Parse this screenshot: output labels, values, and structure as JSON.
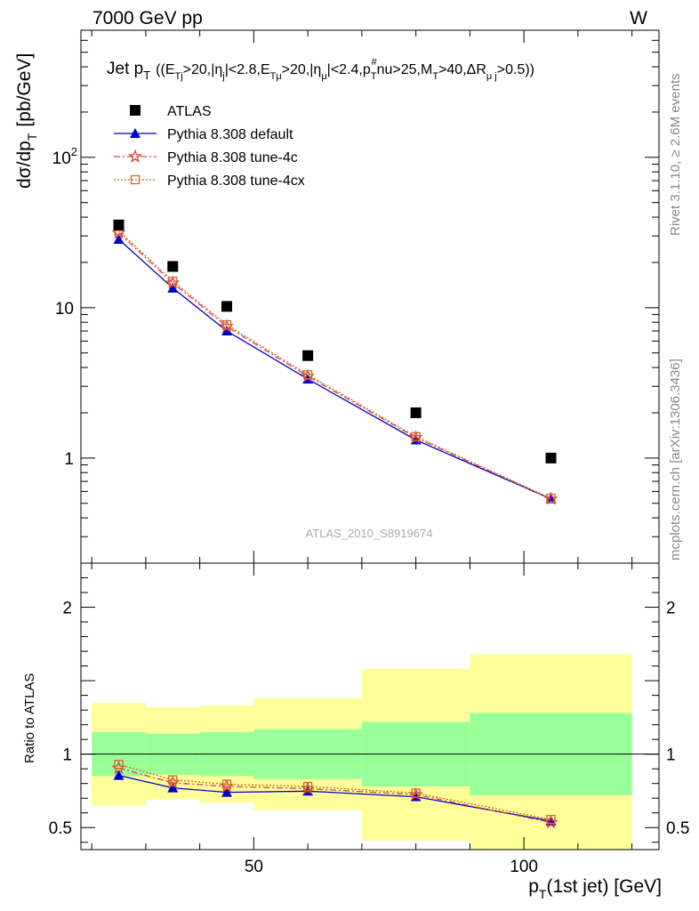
{
  "header": {
    "energy_label": "7000 GeV pp",
    "process_label": "W"
  },
  "side_labels": {
    "rivet": "Rivet 3.1.10, ≥ 2.6M events",
    "mcplots": "mcplots.cern.ch [arXiv:1306.3436]"
  },
  "watermark": "ATLAS_2010_S8919674",
  "colors": {
    "atlas": "#000000",
    "default": "#0000cc",
    "tune4c": "#e04040",
    "tune4cx": "#cc6a2a",
    "band_inner": "#99ff99",
    "band_outer": "#ffff99"
  },
  "chart_data": [
    {
      "type": "scatter",
      "panel": "main",
      "title": "Jet p_T ((E_Tj>20,|η_j|<2.8,E_Tμ>20,|η_μ|<2.4,p_T^#nu>25,M_T>40,ΔR_μj>0.5))",
      "title_parts": {
        "lead": "Jet p",
        "lead_sub": "T",
        "open": "((E",
        "s1": "Tj",
        "t1": ">20,|η",
        "s2": "j",
        "t2": "|<2.8,E",
        "s3": "Tμ",
        "t3": ">20,|η",
        "s4": "μ",
        "t4": "|<2.4,p",
        "s5": "T",
        "sup5": "#",
        "t5": "nu>25,M",
        "s6": "T",
        "t6": ">40,ΔR",
        "s7": "μ j",
        "t7": ">0.5))"
      },
      "ylabel": {
        "main": "dσ/dp",
        "sub": "T",
        "unit": "[pb/GeV]"
      },
      "yscale": "log",
      "ylim": [
        0.2,
        700
      ],
      "xlim": [
        18,
        125
      ],
      "y_tick_labels": [
        {
          "value": 1,
          "label": "1"
        },
        {
          "value": 10,
          "label": "10"
        },
        {
          "value": 100,
          "base": "10",
          "exp": "2"
        }
      ],
      "legend_position": "top-left",
      "series": [
        {
          "name": "ATLAS",
          "key": "atlas",
          "marker": "square",
          "x": [
            25,
            35,
            45,
            60,
            80,
            105
          ],
          "y": [
            35.5,
            18.8,
            10.2,
            4.8,
            2.0,
            1.0
          ]
        },
        {
          "name": "Pythia 8.308 default",
          "key": "default",
          "marker": "triangle",
          "x": [
            25,
            35,
            45,
            60,
            80,
            105
          ],
          "y": [
            28.5,
            13.5,
            7.0,
            3.35,
            1.32,
            0.535
          ]
        },
        {
          "name": "Pythia 8.308 tune-4c",
          "key": "tune4c",
          "marker": "star",
          "x": [
            25,
            35,
            45,
            60,
            80,
            105
          ],
          "y": [
            31.5,
            14.6,
            7.5,
            3.5,
            1.37,
            0.535
          ]
        },
        {
          "name": "Pythia 8.308 tune-4cx",
          "key": "tune4cx",
          "marker": "open-square",
          "x": [
            25,
            35,
            45,
            60,
            80,
            105
          ],
          "y": [
            32.5,
            15.0,
            7.7,
            3.58,
            1.39,
            0.54
          ]
        }
      ]
    },
    {
      "type": "line",
      "panel": "ratio",
      "ylabel": "Ratio to ATLAS",
      "xlabel": {
        "main": "p",
        "sub": "T",
        "rest": "(1st jet) [GeV]"
      },
      "xlim": [
        18,
        125
      ],
      "ylim": [
        0.35,
        2.3
      ],
      "x_tick_labels": [
        {
          "value": 50,
          "label": "50"
        },
        {
          "value": 100,
          "label": "100"
        }
      ],
      "y_tick_labels": [
        {
          "value": 0.5,
          "label": "0.5"
        },
        {
          "value": 1,
          "label": "1"
        },
        {
          "value": 2,
          "label": "2"
        }
      ],
      "bands": [
        {
          "x": [
            20,
            30
          ],
          "inner": [
            0.85,
            1.15
          ],
          "outer": [
            0.65,
            1.35
          ]
        },
        {
          "x": [
            30,
            40
          ],
          "inner": [
            0.86,
            1.14
          ],
          "outer": [
            0.69,
            1.32
          ]
        },
        {
          "x": [
            40,
            50
          ],
          "inner": [
            0.85,
            1.15
          ],
          "outer": [
            0.67,
            1.33
          ]
        },
        {
          "x": [
            50,
            70
          ],
          "inner": [
            0.83,
            1.17
          ],
          "outer": [
            0.62,
            1.38
          ]
        },
        {
          "x": [
            70,
            90
          ],
          "inner": [
            0.78,
            1.22
          ],
          "outer": [
            0.41,
            1.58
          ]
        },
        {
          "x": [
            90,
            120
          ],
          "inner": [
            0.72,
            1.28
          ],
          "outer": [
            0.35,
            1.68
          ]
        }
      ],
      "series": [
        {
          "name": "Pythia 8.308 default",
          "key": "default",
          "marker": "triangle",
          "x": [
            25,
            35,
            45,
            60,
            80,
            105
          ],
          "y": [
            0.855,
            0.77,
            0.74,
            0.748,
            0.71,
            0.545
          ]
        },
        {
          "name": "Pythia 8.308 tune-4c",
          "key": "tune4c",
          "marker": "star",
          "x": [
            25,
            35,
            45,
            60,
            80,
            105
          ],
          "y": [
            0.905,
            0.805,
            0.78,
            0.765,
            0.725,
            0.535
          ]
        },
        {
          "name": "Pythia 8.308 tune-4cx",
          "key": "tune4cx",
          "marker": "open-square",
          "x": [
            25,
            35,
            45,
            60,
            80,
            105
          ],
          "y": [
            0.93,
            0.825,
            0.795,
            0.78,
            0.735,
            0.555
          ]
        }
      ]
    }
  ]
}
